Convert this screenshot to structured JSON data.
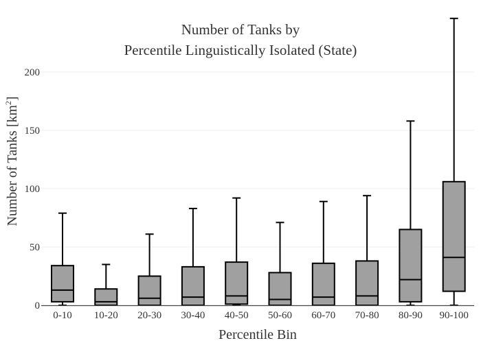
{
  "chart_data": {
    "type": "box",
    "title_lines": [
      "Number of Tanks by",
      "Percentile Linguistically Isolated (State)"
    ],
    "xlabel": "Percentile Bin",
    "ylabel_main": "Number of Tanks  [km",
    "ylabel_sup": "2",
    "ylabel_end": "]",
    "ylim": [
      0,
      250
    ],
    "yticks": [
      0,
      50,
      100,
      150,
      200
    ],
    "grid": true,
    "box_color": "#a0a0a0",
    "categories": [
      "0-10",
      "10-20",
      "20-30",
      "30-40",
      "40-50",
      "50-60",
      "60-70",
      "70-80",
      "80-90",
      "90-100"
    ],
    "boxes": [
      {
        "min": 0,
        "q1": 3,
        "median": 13,
        "q3": 34,
        "max": 79
      },
      {
        "min": 0,
        "q1": 0,
        "median": 3,
        "q3": 14,
        "max": 35
      },
      {
        "min": 0,
        "q1": 0,
        "median": 6,
        "q3": 25,
        "max": 61
      },
      {
        "min": 0,
        "q1": 0,
        "median": 7,
        "q3": 33,
        "max": 83
      },
      {
        "min": 0,
        "q1": 1,
        "median": 8,
        "q3": 37,
        "max": 92
      },
      {
        "min": 0,
        "q1": 0,
        "median": 5,
        "q3": 28,
        "max": 71
      },
      {
        "min": 0,
        "q1": 0,
        "median": 7,
        "q3": 36,
        "max": 89
      },
      {
        "min": 0,
        "q1": 0,
        "median": 8,
        "q3": 38,
        "max": 94
      },
      {
        "min": 0,
        "q1": 3,
        "median": 22,
        "q3": 65,
        "max": 158
      },
      {
        "min": 0,
        "q1": 12,
        "median": 41,
        "q3": 106,
        "max": 246
      }
    ]
  }
}
